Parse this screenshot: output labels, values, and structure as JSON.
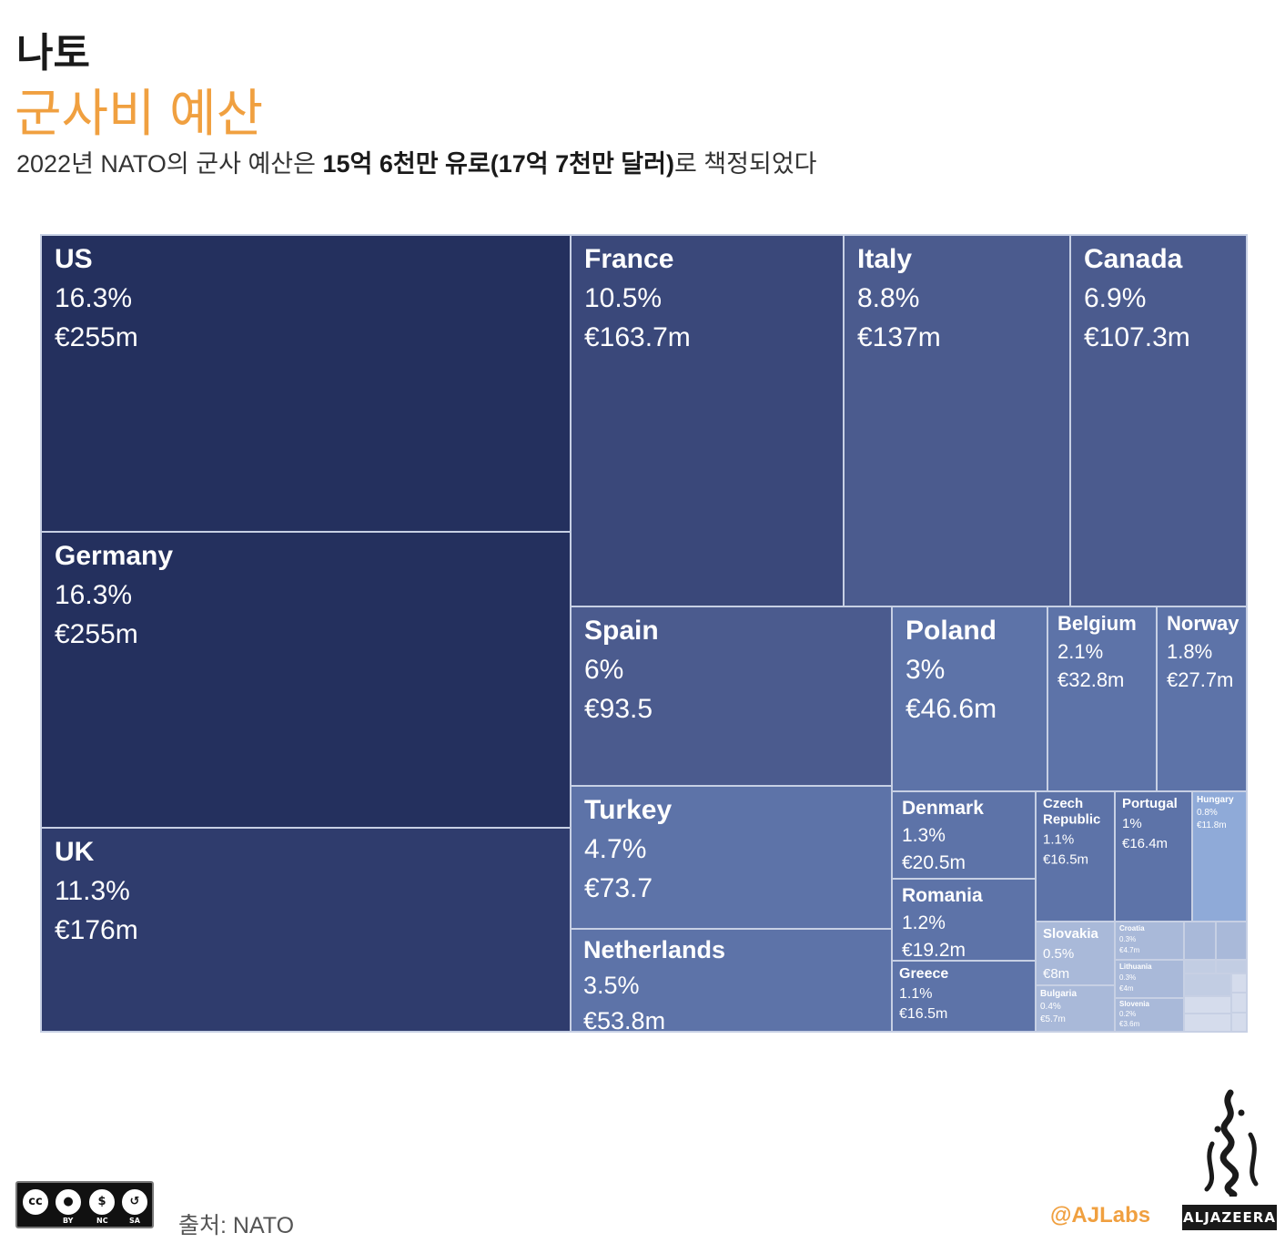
{
  "header": {
    "title": "나토",
    "subtitle": "군사비 예산",
    "desc_prefix": "2022년 NATO의 군사 예산은 ",
    "desc_bold": "15억 6천만 유로(17억 7천만 달러)",
    "desc_suffix": "로 책정되었다"
  },
  "footer": {
    "license_icons": [
      "cc",
      "by",
      "nc",
      "sa"
    ],
    "license_labels": [
      "BY",
      "NC",
      "SA"
    ],
    "source": "출처: NATO",
    "handle": "@AJLabs",
    "brand": "ALJAZEERA"
  },
  "colors": {
    "accent": "#f0a040",
    "scale": [
      "#24305e",
      "#2f3c6d",
      "#3a487a",
      "#4b5b8e",
      "#5d73a8",
      "#6a82b8",
      "#8faad8",
      "#a9b9d9",
      "#c2cde3",
      "#d5dcec"
    ]
  },
  "chart_data": {
    "type": "treemap",
    "title": "군사비 예산",
    "unit": "€m",
    "items": [
      {
        "name": "US",
        "pct_label": "16.3%",
        "value_label": "€255m",
        "value": 255
      },
      {
        "name": "Germany",
        "pct_label": "16.3%",
        "value_label": "€255m",
        "value": 255
      },
      {
        "name": "UK",
        "pct_label": "11.3%",
        "value_label": "€176m",
        "value": 176
      },
      {
        "name": "France",
        "pct_label": "10.5%",
        "value_label": "€163.7m",
        "value": 163.7
      },
      {
        "name": "Italy",
        "pct_label": "8.8%",
        "value_label": "€137m",
        "value": 137
      },
      {
        "name": "Canada",
        "pct_label": "6.9%",
        "value_label": "€107.3m",
        "value": 107.3
      },
      {
        "name": "Spain",
        "pct_label": "6%",
        "value_label": "€93.5",
        "value": 93.5
      },
      {
        "name": "Turkey",
        "pct_label": "4.7%",
        "value_label": "€73.7",
        "value": 73.7
      },
      {
        "name": "Netherlands",
        "pct_label": "3.5%",
        "value_label": "€53.8m",
        "value": 53.8
      },
      {
        "name": "Poland",
        "pct_label": "3%",
        "value_label": "€46.6m",
        "value": 46.6
      },
      {
        "name": "Belgium",
        "pct_label": "2.1%",
        "value_label": "€32.8m",
        "value": 32.8
      },
      {
        "name": "Norway",
        "pct_label": "1.8%",
        "value_label": "€27.7m",
        "value": 27.7
      },
      {
        "name": "Denmark",
        "pct_label": "1.3%",
        "value_label": "€20.5m",
        "value": 20.5
      },
      {
        "name": "Romania",
        "pct_label": "1.2%",
        "value_label": "€19.2m",
        "value": 19.2
      },
      {
        "name": "Greece",
        "pct_label": "1.1%",
        "value_label": "€16.5m",
        "value": 16.5
      },
      {
        "name": "Czech Republic",
        "pct_label": "1.1%",
        "value_label": "€16.5m",
        "value": 16.5
      },
      {
        "name": "Portugal",
        "pct_label": "1%",
        "value_label": "€16.4m",
        "value": 16.4
      },
      {
        "name": "Hungary",
        "pct_label": "0.8%",
        "value_label": "€11.8m",
        "value": 11.8
      },
      {
        "name": "Slovakia",
        "pct_label": "0.5%",
        "value_label": "€8m",
        "value": 8
      },
      {
        "name": "Bulgaria",
        "pct_label": "0.4%",
        "value_label": "€5.7m",
        "value": 5.7
      },
      {
        "name": "Croatia",
        "pct_label": "0.3%",
        "value_label": "€4.7m",
        "value": 4.7
      },
      {
        "name": "Lithuania",
        "pct_label": "0.3%",
        "value_label": "€4m",
        "value": 4
      },
      {
        "name": "Slovenia",
        "pct_label": "0.2%",
        "value_label": "€3.6m",
        "value": 3.6
      }
    ]
  }
}
